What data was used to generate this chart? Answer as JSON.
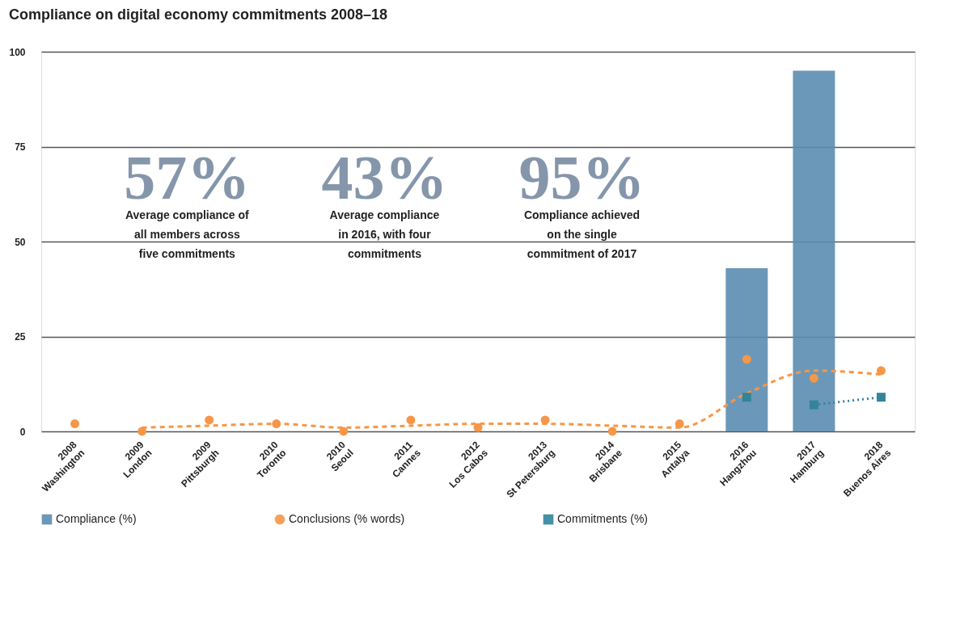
{
  "chart_data": {
    "type": "bar",
    "title": "Compliance on digital economy commitments 2008–18",
    "categories": [
      "2008\nWashington",
      "2009\nLondon",
      "2009\nPittsburgh",
      "2010\nToronto",
      "2010\nSeoul",
      "2011\nCannes",
      "2012\nLos Cabos",
      "2013\nSt Petersburg",
      "2014\nBrisbane",
      "2015\nAntalya",
      "2016\nHangzhou",
      "2017\nHamburg",
      "2018\nBuenos Aires"
    ],
    "series": [
      {
        "name": "Compliance (%)",
        "color": "#5b8db0",
        "values": [
          null,
          null,
          null,
          null,
          null,
          null,
          null,
          null,
          null,
          null,
          43,
          95,
          null
        ]
      },
      {
        "name": "Conclusions (% words)",
        "type": "scatter",
        "marker": "circle",
        "color": "#f79646",
        "values": [
          2,
          0,
          3,
          2,
          0,
          3,
          1,
          3,
          0,
          2,
          19,
          14,
          16
        ]
      },
      {
        "type": "line",
        "line_style": "dashed",
        "color": "#f79646",
        "values": [
          null,
          1,
          1.5,
          2,
          1,
          1.5,
          2,
          2,
          1.5,
          1,
          10,
          16,
          15
        ]
      },
      {
        "name": "Commitments (%)",
        "type": "scatter",
        "marker": "square",
        "color": "#31849b",
        "values": [
          null,
          null,
          null,
          null,
          null,
          null,
          null,
          null,
          null,
          null,
          9,
          7,
          9
        ]
      },
      {
        "type": "line",
        "line_style": "dotted",
        "color": "#31849b",
        "values": [
          null,
          null,
          null,
          null,
          null,
          null,
          null,
          null,
          null,
          null,
          null,
          7,
          9
        ]
      }
    ],
    "ylim": [
      0,
      100
    ],
    "yticks": [
      0,
      25,
      50,
      75,
      100
    ],
    "grid": "y",
    "legend": "bottom",
    "annotations": [
      "57%",
      "Average compliance of\nall members across\nfive commitments",
      "43%",
      "Average compliance\nin 2016, with four\ncommitments",
      "95%",
      "Compliance achieved\non the single\ncommitment of 2017"
    ]
  }
}
